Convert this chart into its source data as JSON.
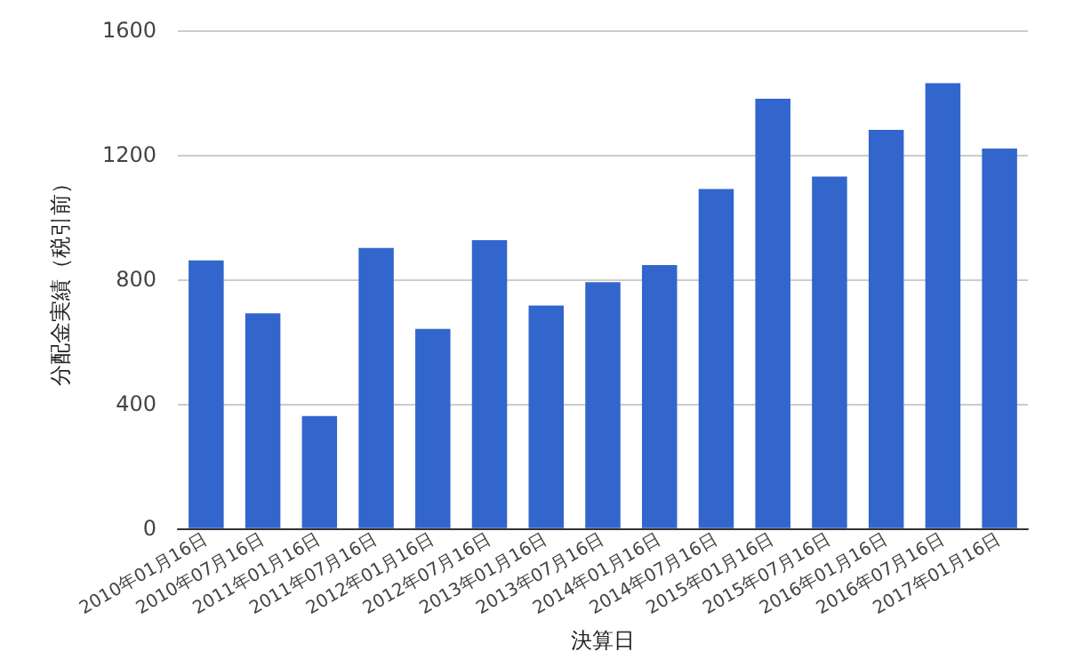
{
  "chart_data": {
    "type": "bar",
    "xlabel": "決算日",
    "ylabel": "分配金実績（税引前）",
    "categories": [
      "2010年01月16日",
      "2010年07月16日",
      "2011年01月16日",
      "2011年07月16日",
      "2012年01月16日",
      "2012年07月16日",
      "2013年01月16日",
      "2013年07月16日",
      "2014年01月16日",
      "2014年07月16日",
      "2015年01月16日",
      "2015年07月16日",
      "2016年01月16日",
      "2016年07月16日",
      "2017年01月16日"
    ],
    "values": [
      860,
      690,
      360,
      900,
      640,
      925,
      715,
      790,
      845,
      1090,
      1380,
      1130,
      1280,
      1430,
      1220
    ],
    "color": "#3366cc",
    "ylim": [
      0,
      1600
    ],
    "yticks": [
      0,
      400,
      800,
      1200,
      1600
    ],
    "grid": "y"
  }
}
